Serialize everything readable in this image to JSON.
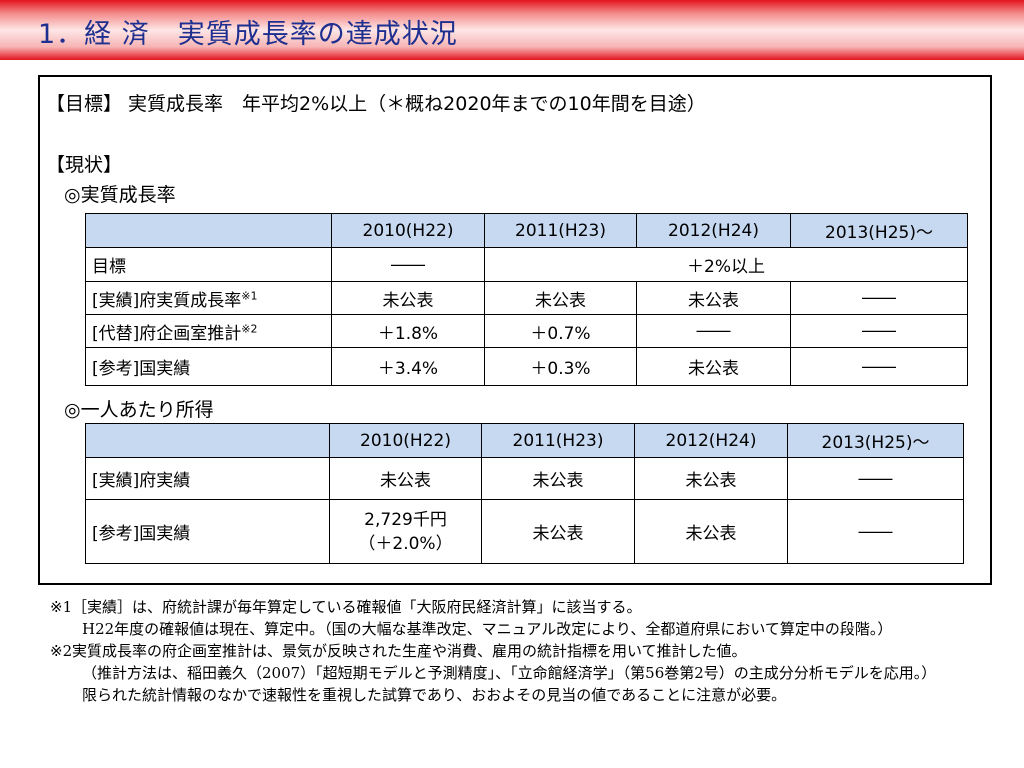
{
  "header": {
    "title": "1．経 済　実質成長率の達成状況"
  },
  "goal": "【目標】 実質成長率　年平均2%以上（＊概ね2020年までの10年間を目途）",
  "status_heading": "【現状】",
  "sections": [
    {
      "heading": "◎実質成長率",
      "table": {
        "columns": [
          "2010(H22)",
          "2011(H23)",
          "2012(H24)",
          "2013(H25)～"
        ],
        "rows": [
          {
            "label": "目標",
            "cells": [
              "――",
              "＋2%以上"
            ]
          },
          {
            "label": "[実績]府実質成長率",
            "note": "※1",
            "cells": [
              "未公表",
              "未公表",
              "未公表",
              "――"
            ]
          },
          {
            "label": "[代替]府企画室推計",
            "note": "※2",
            "cells": [
              "＋1.8%",
              "＋0.7%",
              "――",
              "――"
            ]
          },
          {
            "label": "[参考]国実績",
            "cells": [
              "＋3.4%",
              "＋0.3%",
              "未公表",
              "――"
            ]
          }
        ]
      }
    },
    {
      "heading": "◎一人あたり所得",
      "table": {
        "columns": [
          "2010(H22)",
          "2011(H23)",
          "2012(H24)",
          "2013(H25)～"
        ],
        "rows": [
          {
            "label": "[実績]府実績",
            "cells": [
              "未公表",
              "未公表",
              "未公表",
              "――"
            ]
          },
          {
            "label": "[参考]国実績",
            "cells": [
              [
                "2,729千円",
                "（＋2.0%）"
              ],
              "未公表",
              "未公表",
              "――"
            ]
          }
        ]
      }
    }
  ],
  "notes": [
    {
      "marker": "※1",
      "paragraphs": [
        "［実績］は、府統計課が毎年算定している確報値「大阪府民経済計算」に該当する。",
        "H22年度の確報値は現在、算定中。（国の大幅な基準改定、マニュアル改定により、全都道府県において算定中の段階。）"
      ]
    },
    {
      "marker": "※2",
      "paragraphs": [
        "実質成長率の府企画室推計は、景気が反映された生産や消費、雇用の統計指標を用いて推計した値。",
        "（推計方法は、稲田義久（2007）「超短期モデルと予測精度」、「立命館経済学」（第56巻第2号）の主成分分析モデルを応用。）",
        "限られた統計情報のなかで速報性を重視した試算であり、おおよその見当の値であることに注意が必要。"
      ]
    }
  ]
}
